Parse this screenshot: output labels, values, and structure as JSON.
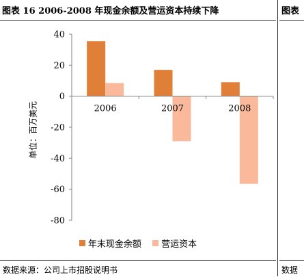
{
  "figure": {
    "title": "图表 16 2006-2008 年现金余额及营运资本持续下降",
    "next_title": "图表",
    "source": "数据来源：公司上市招股说明书",
    "next_source": "数据"
  },
  "chart_data": {
    "type": "bar",
    "categories": [
      "2006",
      "2007",
      "2008"
    ],
    "series": [
      {
        "name": "年末现金余额",
        "values": [
          35.5,
          17,
          9
        ],
        "color": "#e07f37"
      },
      {
        "name": "营运资本",
        "values": [
          8.5,
          -29,
          -56.5
        ],
        "color": "#f9b99a"
      }
    ],
    "ylabel": "单位：百万美元",
    "ylim": [
      -80,
      40
    ],
    "yticks": [
      "40",
      "20",
      "0",
      "-20",
      "-40",
      "-60",
      "-80"
    ],
    "grid": false,
    "legend": "bottom"
  }
}
